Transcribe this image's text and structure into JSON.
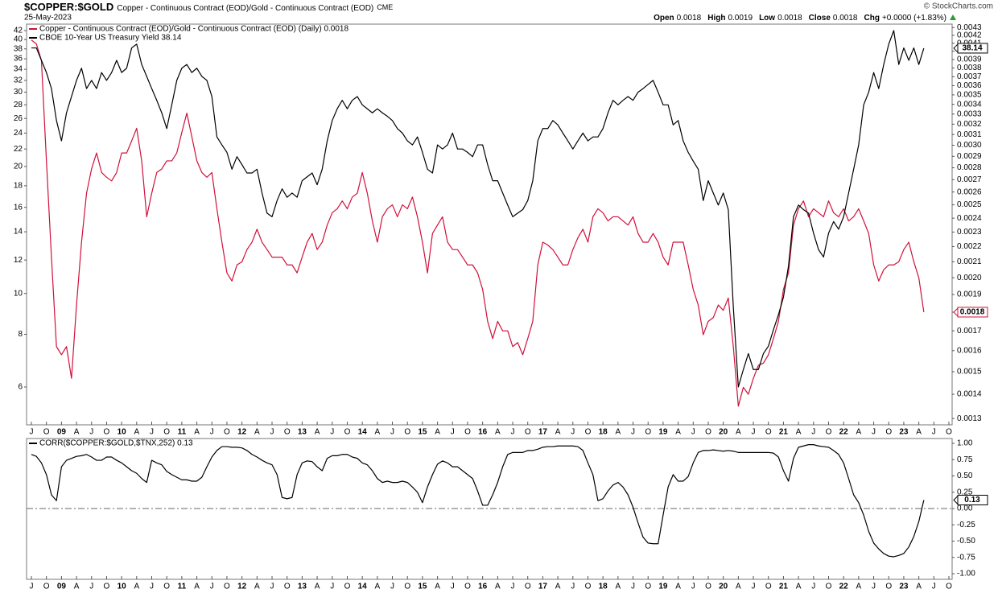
{
  "header": {
    "symbol": "$COPPER:$GOLD",
    "description": "Copper - Continuous Contract (EOD)/Gold - Continuous Contract (EOD)",
    "exchange": "CME",
    "date": "25-May-2023",
    "source": "© StockCharts.com",
    "quote": [
      {
        "label": "Open",
        "value": 0.0018
      },
      {
        "label": "High",
        "value": 0.0019
      },
      {
        "label": "Low",
        "value": 0.0018
      },
      {
        "label": "Close",
        "value": 0.0018
      },
      {
        "label": "Chg",
        "value": "+0.0000 (+1.83%)"
      }
    ]
  },
  "chart_data": [
    {
      "type": "line",
      "log": true,
      "categories": [
        "J",
        null,
        null,
        "O",
        null,
        null,
        "09",
        null,
        null,
        "A",
        null,
        null,
        "J",
        null,
        null,
        "O",
        null,
        null,
        "10",
        null,
        null,
        "A",
        null,
        null,
        "J",
        null,
        null,
        "O",
        null,
        null,
        "11",
        null,
        null,
        "A",
        null,
        null,
        "J",
        null,
        null,
        "O",
        null,
        null,
        "12",
        null,
        null,
        "A",
        null,
        null,
        "J",
        null,
        null,
        "O",
        null,
        null,
        "13",
        null,
        null,
        "A",
        null,
        null,
        "J",
        null,
        null,
        "O",
        null,
        null,
        "14",
        null,
        null,
        "A",
        null,
        null,
        "J",
        null,
        null,
        "O",
        null,
        null,
        "15",
        null,
        null,
        "A",
        null,
        null,
        "J",
        null,
        null,
        "O",
        null,
        null,
        "16",
        null,
        null,
        "A",
        null,
        null,
        "J",
        null,
        null,
        "O",
        null,
        null,
        "17",
        null,
        null,
        "A",
        null,
        null,
        "J",
        null,
        null,
        "O",
        null,
        null,
        "18",
        null,
        null,
        "A",
        null,
        null,
        "J",
        null,
        null,
        "O",
        null,
        null,
        "19",
        null,
        null,
        "A",
        null,
        null,
        "J",
        null,
        null,
        "O",
        null,
        null,
        "20",
        null,
        null,
        "A",
        null,
        null,
        "J",
        null,
        null,
        "O",
        null,
        null,
        "21",
        null,
        null,
        "A",
        null,
        null,
        "J",
        null,
        null,
        "O",
        null,
        null,
        "22",
        null,
        null,
        "A",
        null,
        null,
        "J",
        null,
        null,
        "O",
        null,
        null,
        "23",
        null,
        null,
        "A",
        null,
        null,
        "J",
        null,
        null,
        "O"
      ],
      "series": [
        {
          "name": "Copper - Continuous Contract (EOD)/Gold - Continuous Contract (EOD) (Daily) 0.0018",
          "color": "#d0103a",
          "axis": "y2",
          "values": [
            0.00414,
            0.00409,
            0.00389,
            0.00286,
            0.00213,
            0.00162,
            0.00158,
            0.00162,
            0.00147,
            0.00184,
            0.00223,
            0.00259,
            0.00279,
            0.00293,
            0.00276,
            0.00272,
            0.00269,
            0.00276,
            0.00293,
            0.00293,
            0.00304,
            0.00316,
            0.00286,
            0.00241,
            0.00259,
            0.00276,
            0.00279,
            0.00286,
            0.00286,
            0.00293,
            0.00312,
            0.00331,
            0.00308,
            0.00286,
            0.00276,
            0.00272,
            0.00276,
            0.00247,
            0.00223,
            0.00203,
            0.00198,
            0.00208,
            0.0021,
            0.00218,
            0.00223,
            0.00232,
            0.00223,
            0.00218,
            0.00213,
            0.00213,
            0.00213,
            0.00208,
            0.00208,
            0.00203,
            0.00213,
            0.00223,
            0.00229,
            0.00218,
            0.00223,
            0.00235,
            0.00244,
            0.00247,
            0.00253,
            0.00247,
            0.00256,
            0.00259,
            0.00276,
            0.00259,
            0.00238,
            0.00223,
            0.00241,
            0.00247,
            0.0025,
            0.00241,
            0.0025,
            0.00247,
            0.00256,
            0.00241,
            0.00223,
            0.00203,
            0.00229,
            0.00235,
            0.00241,
            0.00223,
            0.00218,
            0.00218,
            0.00213,
            0.00208,
            0.00208,
            0.00203,
            0.00193,
            0.00175,
            0.00166,
            0.00175,
            0.0017,
            0.0017,
            0.00162,
            0.00164,
            0.00158,
            0.00166,
            0.00175,
            0.00208,
            0.00223,
            0.00221,
            0.00218,
            0.00213,
            0.00208,
            0.00208,
            0.00218,
            0.00226,
            0.00232,
            0.00223,
            0.00241,
            0.00247,
            0.00244,
            0.00238,
            0.00241,
            0.00241,
            0.00238,
            0.00235,
            0.00241,
            0.00229,
            0.00223,
            0.00223,
            0.00229,
            0.00223,
            0.00213,
            0.00208,
            0.00223,
            0.00223,
            0.00223,
            0.00208,
            0.00193,
            0.00184,
            0.00168,
            0.00175,
            0.00177,
            0.00184,
            0.00181,
            0.00188,
            0.00162,
            0.00135,
            0.00143,
            0.0014,
            0.00147,
            0.00153,
            0.00154,
            0.00158,
            0.00166,
            0.00175,
            0.00193,
            0.00203,
            0.00235,
            0.00247,
            0.00253,
            0.00241,
            0.00247,
            0.00244,
            0.00241,
            0.00253,
            0.00244,
            0.00241,
            0.00247,
            0.00238,
            0.00241,
            0.00247,
            0.00238,
            0.00229,
            0.00208,
            0.00198,
            0.00205,
            0.00208,
            0.00208,
            0.0021,
            0.00218,
            0.00223,
            0.0021,
            0.002,
            0.0018,
            null,
            null,
            null,
            null,
            null
          ]
        },
        {
          "name": "CBOE 10-Year US Treasury Yield 38.14",
          "color": "#000000",
          "values": [
            38.2,
            38.2,
            35.7,
            33.4,
            30.6,
            25.7,
            23.0,
            26.8,
            29.3,
            32.0,
            34.2,
            30.6,
            32.0,
            30.6,
            33.4,
            32.0,
            33.4,
            35.7,
            33.4,
            34.2,
            38.2,
            39.0,
            34.9,
            32.7,
            30.6,
            28.7,
            26.8,
            24.6,
            28.0,
            32.0,
            34.2,
            34.9,
            33.4,
            34.2,
            32.7,
            32.0,
            29.3,
            23.5,
            22.5,
            21.6,
            19.7,
            21.1,
            20.2,
            19.3,
            19.3,
            19.7,
            17.3,
            15.5,
            15.2,
            16.6,
            17.7,
            16.9,
            17.3,
            16.9,
            18.5,
            18.9,
            19.3,
            18.1,
            19.7,
            23.0,
            25.7,
            27.4,
            28.7,
            27.4,
            28.7,
            29.3,
            28.0,
            27.4,
            26.8,
            27.4,
            26.8,
            26.3,
            25.7,
            24.6,
            24.0,
            23.0,
            22.5,
            23.5,
            21.6,
            19.7,
            19.3,
            22.5,
            22.0,
            22.5,
            24.0,
            22.0,
            22.0,
            21.6,
            21.1,
            22.5,
            22.5,
            20.2,
            18.5,
            18.5,
            17.3,
            16.2,
            15.2,
            15.5,
            15.8,
            16.6,
            18.5,
            23.0,
            24.6,
            24.6,
            25.7,
            25.1,
            24.0,
            23.0,
            22.0,
            23.0,
            24.0,
            23.0,
            23.5,
            23.5,
            24.6,
            26.8,
            28.7,
            28.0,
            28.7,
            29.3,
            28.7,
            30.0,
            30.6,
            31.3,
            32.0,
            30.0,
            28.0,
            28.0,
            25.1,
            25.7,
            23.0,
            21.6,
            20.6,
            19.7,
            16.6,
            18.5,
            17.3,
            16.2,
            17.3,
            15.8,
            9.3,
            6.0,
            6.6,
            7.2,
            6.6,
            6.6,
            7.2,
            7.5,
            8.2,
            8.9,
            9.8,
            11.6,
            15.2,
            16.2,
            15.8,
            15.5,
            13.9,
            12.7,
            12.2,
            13.9,
            14.8,
            14.2,
            15.2,
            17.3,
            19.7,
            22.5,
            28.0,
            30.0,
            33.4,
            30.6,
            34.9,
            39.0,
            42.0,
            34.9,
            38.2,
            35.7,
            38.2,
            34.9,
            38.14,
            null,
            null,
            null,
            null,
            null
          ]
        }
      ],
      "ylim": [
        4.88,
        43.5
      ],
      "yticks": [
        6,
        8,
        10,
        12,
        14,
        16,
        18,
        20,
        22,
        24,
        26,
        28,
        30,
        32,
        34,
        36,
        38,
        40,
        42
      ],
      "y2lim": [
        0.001275,
        0.004346
      ],
      "y2ticks": [
        0.0013,
        0.0014,
        0.0015,
        0.0016,
        0.0017,
        0.0018,
        0.0019,
        {
          "value": 0.002,
          "label": "0.0020"
        },
        0.0021,
        0.0022,
        0.0023,
        0.0024,
        0.0025,
        0.0026,
        0.0027,
        0.0028,
        0.0029,
        {
          "value": 0.003,
          "label": "0.0030"
        },
        0.0031,
        0.0032,
        0.0033,
        0.0034,
        0.0035,
        0.0036,
        0.0037,
        0.0038,
        0.0039,
        {
          "value": 0.004,
          "label": "0.0040"
        },
        0.0041,
        0.0042,
        0.0043
      ]
    },
    {
      "type": "line",
      "log": false,
      "ytick_side": "right",
      "zero_line": true,
      "categories": [
        "J",
        null,
        null,
        "O",
        null,
        null,
        "09",
        null,
        null,
        "A",
        null,
        null,
        "J",
        null,
        null,
        "O",
        null,
        null,
        "10",
        null,
        null,
        "A",
        null,
        null,
        "J",
        null,
        null,
        "O",
        null,
        null,
        "11",
        null,
        null,
        "A",
        null,
        null,
        "J",
        null,
        null,
        "O",
        null,
        null,
        "12",
        null,
        null,
        "A",
        null,
        null,
        "J",
        null,
        null,
        "O",
        null,
        null,
        "13",
        null,
        null,
        "A",
        null,
        null,
        "J",
        null,
        null,
        "O",
        null,
        null,
        "14",
        null,
        null,
        "A",
        null,
        null,
        "J",
        null,
        null,
        "O",
        null,
        null,
        "15",
        null,
        null,
        "A",
        null,
        null,
        "J",
        null,
        null,
        "O",
        null,
        null,
        "16",
        null,
        null,
        "A",
        null,
        null,
        "J",
        null,
        null,
        "O",
        null,
        null,
        "17",
        null,
        null,
        "A",
        null,
        null,
        "J",
        null,
        null,
        "O",
        null,
        null,
        "18",
        null,
        null,
        "A",
        null,
        null,
        "J",
        null,
        null,
        "O",
        null,
        null,
        "19",
        null,
        null,
        "A",
        null,
        null,
        "J",
        null,
        null,
        "O",
        null,
        null,
        "20",
        null,
        null,
        "A",
        null,
        null,
        "J",
        null,
        null,
        "O",
        null,
        null,
        "21",
        null,
        null,
        "A",
        null,
        null,
        "J",
        null,
        null,
        "O",
        null,
        null,
        "22",
        null,
        null,
        "A",
        null,
        null,
        "J",
        null,
        null,
        "O",
        null,
        null,
        "23",
        null,
        null,
        "A",
        null,
        null,
        "J",
        null,
        null,
        "O"
      ],
      "series": [
        {
          "name": "CORR($COPPER:$GOLD,$TNX,252) 0.13",
          "color": "#000000",
          "values": [
            0.83,
            0.8,
            0.7,
            0.52,
            0.21,
            0.12,
            0.64,
            0.74,
            0.77,
            0.8,
            0.81,
            0.83,
            0.79,
            0.74,
            0.74,
            0.79,
            0.79,
            0.74,
            0.7,
            0.64,
            0.58,
            0.54,
            0.46,
            0.4,
            0.74,
            0.7,
            0.67,
            0.57,
            0.52,
            0.48,
            0.44,
            0.44,
            0.42,
            0.42,
            0.48,
            0.64,
            0.79,
            0.89,
            0.95,
            0.95,
            0.94,
            0.94,
            0.93,
            0.89,
            0.83,
            0.79,
            0.74,
            0.7,
            0.67,
            0.52,
            0.17,
            0.15,
            0.17,
            0.52,
            0.7,
            0.73,
            0.72,
            0.64,
            0.58,
            0.77,
            0.81,
            0.81,
            0.83,
            0.83,
            0.79,
            0.77,
            0.7,
            0.67,
            0.58,
            0.46,
            0.4,
            0.42,
            0.4,
            0.4,
            0.42,
            0.4,
            0.33,
            0.25,
            0.09,
            0.33,
            0.52,
            0.68,
            0.73,
            0.7,
            0.64,
            0.64,
            0.58,
            0.52,
            0.46,
            0.27,
            0.05,
            0.05,
            0.21,
            0.4,
            0.64,
            0.83,
            0.86,
            0.86,
            0.86,
            0.89,
            0.89,
            0.91,
            0.94,
            0.95,
            0.95,
            0.96,
            0.96,
            0.96,
            0.96,
            0.95,
            0.89,
            0.7,
            0.52,
            0.12,
            0.15,
            0.27,
            0.36,
            0.4,
            0.33,
            0.21,
            0.02,
            -0.22,
            -0.44,
            -0.53,
            -0.54,
            -0.54,
            -0.1,
            0.33,
            0.52,
            0.42,
            0.42,
            0.49,
            0.7,
            0.86,
            0.89,
            0.89,
            0.9,
            0.89,
            0.88,
            0.89,
            0.88,
            0.86,
            0.86,
            0.86,
            0.86,
            0.86,
            0.86,
            0.86,
            0.85,
            0.79,
            0.58,
            0.42,
            0.77,
            0.94,
            0.96,
            0.98,
            0.98,
            0.96,
            0.95,
            0.94,
            0.89,
            0.83,
            0.7,
            0.46,
            0.21,
            0.09,
            -0.1,
            -0.35,
            -0.53,
            -0.62,
            -0.69,
            -0.73,
            -0.74,
            -0.72,
            -0.69,
            -0.59,
            -0.43,
            -0.2,
            0.13,
            null,
            null,
            null,
            null,
            null
          ]
        }
      ],
      "ylim": [
        -1.086,
        1.074
      ],
      "yticks": [
        {
          "value": 1,
          "label": "1.00"
        },
        0.75,
        {
          "value": 0.5,
          "label": "0.50"
        },
        0.25,
        {
          "value": 0,
          "label": "0.00"
        },
        -0.25,
        {
          "value": -0.5,
          "label": "-0.50"
        },
        -0.75,
        {
          "value": -1,
          "label": "-1.00"
        }
      ]
    }
  ]
}
